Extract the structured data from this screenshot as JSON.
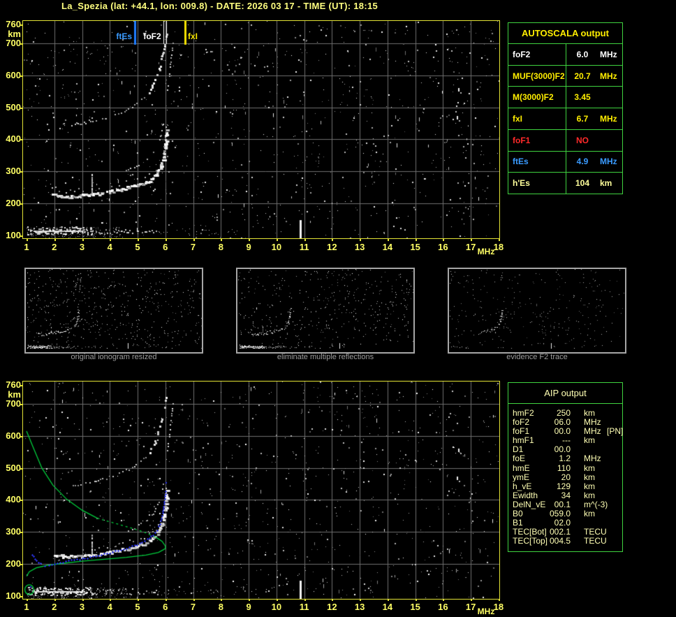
{
  "title": "La_Spezia (lat: +44.1, lon: 009.8) - DATE: 2026 03 17 - TIME (UT): 18:15",
  "colors": {
    "background": "#000000",
    "frame_yellow": "#e3e335",
    "axis_label_yellow": "#ffff66",
    "grid_gray": "#6f6f6f",
    "table_green": "#3fd23f",
    "value_yellow": "#ffee00",
    "value_white": "#ffffff",
    "value_red": "#ff2a2a",
    "value_blue": "#3a9bff",
    "value_pale_yellow": "#ffff9b",
    "aip_text": "#ffffb4",
    "profile_green": "#00cd3c",
    "trace_blue": "#2b35ee",
    "caption_gray": "#9c9c9c"
  },
  "axes": {
    "y_labels": [
      {
        "text": "760",
        "km": 760
      },
      {
        "text": "km",
        "special": "unit"
      },
      {
        "text": "700",
        "km": 700
      },
      {
        "text": "600",
        "km": 600
      },
      {
        "text": "500",
        "km": 500
      },
      {
        "text": "400",
        "km": 400
      },
      {
        "text": "300",
        "km": 300
      },
      {
        "text": "200",
        "km": 200
      },
      {
        "text": "100",
        "km": 100
      }
    ],
    "x_labels": [
      {
        "text": "1",
        "f": 1
      },
      {
        "text": "2",
        "f": 2
      },
      {
        "text": "3",
        "f": 3
      },
      {
        "text": "4",
        "f": 4
      },
      {
        "text": "5",
        "f": 5
      },
      {
        "text": "6",
        "f": 6
      },
      {
        "text": "7",
        "f": 7
      },
      {
        "text": "8",
        "f": 8
      },
      {
        "text": "9",
        "f": 9
      },
      {
        "text": "10",
        "f": 10
      },
      {
        "text": "11",
        "f": 11
      },
      {
        "text": "12",
        "f": 12
      },
      {
        "text": "13",
        "f": 13
      },
      {
        "text": "14",
        "f": 14
      },
      {
        "text": "15",
        "f": 15
      },
      {
        "text": "16",
        "f": 16
      },
      {
        "text": "17",
        "f": 17
      },
      {
        "text": "MHz",
        "special": "unit"
      },
      {
        "text": "18",
        "f": 18
      }
    ]
  },
  "top_plot": {
    "markers": [
      {
        "label": "ftEs",
        "f": 4.9,
        "color": "#3a9bff",
        "line": "#1f7dff",
        "style": "solid"
      },
      {
        "label": "foF2",
        "f": 6.0,
        "color": "#ffffff",
        "line": "#ffffff",
        "style": "double"
      },
      {
        "label": "fxI",
        "f": 6.7,
        "color": "#f5e300",
        "line": "#f5e300",
        "style": "solid"
      }
    ]
  },
  "autoscala": {
    "header": "AUTOSCALA output",
    "rows": [
      {
        "label": "foF2",
        "value": "6.0",
        "unit": "MHz",
        "color": "#ffffff"
      },
      {
        "label": "MUF(3000)F2",
        "value": "20.7",
        "unit": "MHz",
        "color": "#ffee00"
      },
      {
        "label": "M(3000)F2",
        "value": "3.45",
        "unit": "",
        "color": "#ffee00"
      },
      {
        "label": "fxI",
        "value": "6.7",
        "unit": "MHz",
        "color": "#ffee00"
      },
      {
        "label": "foF1",
        "value": "NO",
        "unit": "",
        "color": "#ff2a2a"
      },
      {
        "label": "ftEs",
        "value": "4.9",
        "unit": "MHz",
        "color": "#3a9bff"
      },
      {
        "label": "h'Es",
        "value": "104",
        "unit": "km",
        "color": "#ffff9b"
      }
    ]
  },
  "thumbnails": [
    {
      "caption": "original ionogram resized",
      "variant": "full"
    },
    {
      "caption": "eliminate multiple reflections",
      "variant": "nohop"
    },
    {
      "caption": "evidence F2 trace",
      "variant": "f2only"
    }
  ],
  "aip": {
    "header": "AIP output",
    "rows": [
      {
        "label": "hmF2",
        "value": "250",
        "unit": "km",
        "extra": ""
      },
      {
        "label": "foF2",
        "value": "06.0",
        "unit": "MHz",
        "extra": ""
      },
      {
        "label": "foF1",
        "value": "00.0",
        "unit": "MHz",
        "extra": "[PN]"
      },
      {
        "label": "hmF1",
        "value": "---",
        "unit": "km",
        "extra": ""
      },
      {
        "label": "D1",
        "value": "00.0",
        "unit": "",
        "extra": ""
      },
      {
        "label": "foE",
        "value": "1.2",
        "unit": "MHz",
        "extra": ""
      },
      {
        "label": "hmE",
        "value": "110",
        "unit": "km",
        "extra": ""
      },
      {
        "label": "ymE",
        "value": "20",
        "unit": "km",
        "extra": ""
      },
      {
        "label": "h_vE",
        "value": "129",
        "unit": "km",
        "extra": ""
      },
      {
        "label": "Ewidth",
        "value": "34",
        "unit": "km",
        "extra": ""
      },
      {
        "label": "DelN_vE",
        "value": "00.1",
        "unit": "m^(-3)",
        "extra": ""
      },
      {
        "label": "B0",
        "value": "059.0",
        "unit": "km",
        "extra": ""
      },
      {
        "label": "B1",
        "value": "02.0",
        "unit": "",
        "extra": ""
      },
      {
        "label": "TEC[Bot]",
        "value": "002.1",
        "unit": "TECU",
        "extra": ""
      },
      {
        "label": "TEC[Top]",
        "value": "004.5",
        "unit": "TECU",
        "extra": ""
      }
    ]
  },
  "chart_data": {
    "type": "scatter",
    "title": "Ionogram La_Spezia 2026-03-17 18:15 UT",
    "xlabel": "MHz",
    "ylabel": "km",
    "xlim": [
      1,
      18
    ],
    "ylim": [
      100,
      760
    ],
    "grid": true,
    "scaled_values": {
      "foF2_MHz": 6.0,
      "MUF3000F2_MHz": 20.7,
      "M3000F2": 3.45,
      "fxI_MHz": 6.7,
      "foF1": "NO",
      "ftEs_MHz": 4.9,
      "hEs_km": 104
    },
    "series": [
      {
        "role": "es",
        "name": "Es layer echoes",
        "km_band": [
          100,
          130
        ],
        "f_dense": [
          1.02,
          3.35
        ],
        "f_sparse": [
          3.35,
          5.75
        ],
        "baseline_km": 115
      },
      {
        "role": "f2",
        "name": "F2 ordinary trace echo",
        "points": [
          [
            1.9,
            232
          ],
          [
            2.4,
            224
          ],
          [
            3.0,
            227
          ],
          [
            3.6,
            233
          ],
          [
            4.2,
            242
          ],
          [
            4.7,
            252
          ],
          [
            5.1,
            262
          ],
          [
            5.4,
            274
          ],
          [
            5.65,
            292
          ],
          [
            5.8,
            315
          ],
          [
            5.9,
            345
          ],
          [
            5.97,
            385
          ],
          [
            6.02,
            432
          ]
        ]
      },
      {
        "role": "f2x",
        "name": "F2 upper branch echo",
        "points": [
          [
            4.4,
            300
          ],
          [
            4.8,
            312
          ],
          [
            5.1,
            326
          ],
          [
            5.4,
            344
          ],
          [
            5.6,
            366
          ],
          [
            5.75,
            395
          ],
          [
            5.85,
            425
          ],
          [
            5.9,
            452
          ]
        ]
      },
      {
        "role": "hop2",
        "name": "F2 second hop echo",
        "points": [
          [
            2.6,
            445
          ],
          [
            3.2,
            455
          ],
          [
            3.8,
            468
          ],
          [
            4.3,
            483
          ],
          [
            4.8,
            502
          ],
          [
            5.15,
            525
          ],
          [
            5.4,
            550
          ],
          [
            5.6,
            582
          ],
          [
            5.75,
            620
          ],
          [
            5.87,
            662
          ],
          [
            5.95,
            700
          ],
          [
            6.05,
            738
          ]
        ]
      },
      {
        "role": "hop2x",
        "name": "second hop x branch",
        "points": [
          [
            6.05,
            555
          ],
          [
            6.12,
            600
          ],
          [
            6.18,
            650
          ],
          [
            6.25,
            702
          ]
        ]
      },
      {
        "role": "rfi",
        "name": "interference line",
        "f": 10.85,
        "km": [
          100,
          148
        ]
      },
      {
        "role": "dash",
        "name": "vertical echo cluster",
        "f": 3.35,
        "km": [
          235,
          292
        ]
      },
      {
        "role": "hot",
        "name": "bright noise cluster",
        "points": [
          [
            16.55,
            560
          ],
          [
            16.5,
            472
          ]
        ]
      }
    ],
    "profile": {
      "name": "AIP electron density profile",
      "upper_solid_a": [
        [
          1.0,
          615
        ],
        [
          1.25,
          562
        ],
        [
          1.55,
          500
        ],
        [
          1.95,
          446
        ],
        [
          2.45,
          402
        ],
        [
          3.0,
          368
        ],
        [
          3.55,
          343
        ]
      ],
      "upper_dashed": [
        [
          3.55,
          343
        ],
        [
          4.15,
          328
        ],
        [
          4.75,
          313
        ],
        [
          5.25,
          299
        ],
        [
          5.65,
          284
        ]
      ],
      "upper_solid_b": [
        [
          5.65,
          284
        ],
        [
          5.88,
          271
        ],
        [
          6.0,
          256
        ],
        [
          6.0,
          248
        ]
      ],
      "lower": [
        [
          6.0,
          248
        ],
        [
          5.75,
          236
        ],
        [
          5.3,
          228
        ],
        [
          4.6,
          221
        ],
        [
          3.8,
          215
        ],
        [
          3.0,
          209
        ],
        [
          2.3,
          202
        ],
        [
          1.75,
          196
        ],
        [
          1.35,
          188
        ],
        [
          1.1,
          176
        ],
        [
          1.0,
          162
        ]
      ],
      "e_loop": {
        "center": [
          1.1,
          120
        ],
        "rx": 0.16,
        "ry": 15
      }
    },
    "restored_trace": {
      "name": "Autoscala restored F2 trace",
      "points": [
        [
          1.2,
          228
        ],
        [
          1.35,
          210
        ],
        [
          1.5,
          200
        ],
        [
          1.65,
          196
        ],
        [
          1.8,
          197
        ],
        [
          2.0,
          201
        ],
        [
          2.2,
          205
        ],
        [
          2.5,
          210
        ],
        [
          2.8,
          214
        ],
        [
          3.1,
          219
        ],
        [
          3.4,
          224
        ],
        [
          3.7,
          229
        ],
        [
          4.0,
          235
        ],
        [
          4.3,
          242
        ],
        [
          4.6,
          250
        ],
        [
          4.9,
          259
        ],
        [
          5.15,
          268
        ],
        [
          5.35,
          278
        ],
        [
          5.55,
          291
        ],
        [
          5.7,
          307
        ],
        [
          5.8,
          325
        ],
        [
          5.88,
          350
        ],
        [
          5.94,
          380
        ],
        [
          5.98,
          405
        ],
        [
          6.0,
          428
        ]
      ],
      "isolated": [
        [
          1.12,
          130
        ],
        [
          6.0,
          455
        ]
      ]
    }
  }
}
